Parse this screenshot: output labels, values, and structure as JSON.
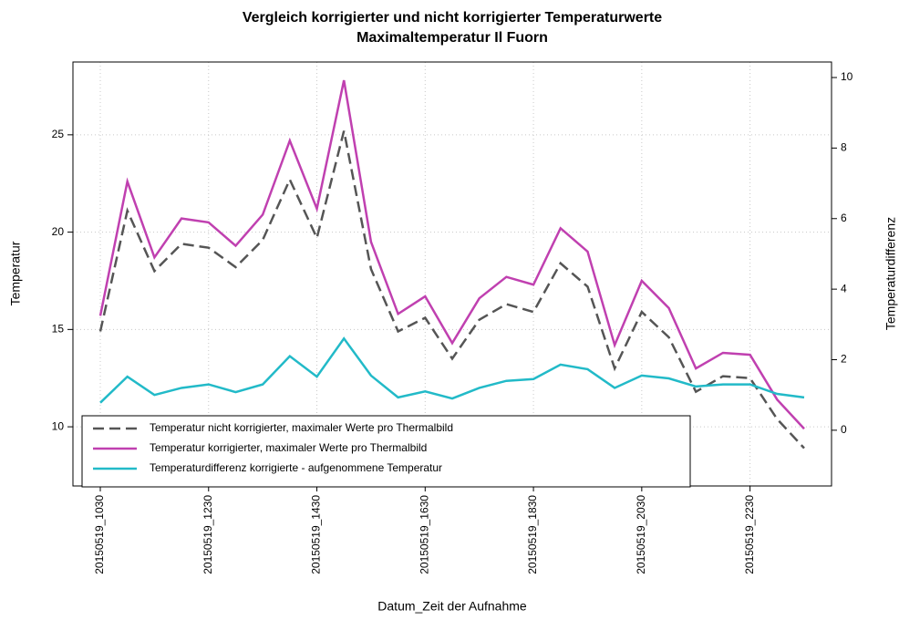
{
  "chart_data": {
    "type": "line",
    "title": "Vergleich korrigierter und nicht korrigierter Temperaturwerte",
    "subtitle": "Maximaltemperatur Il Fuorn",
    "x_label": "Datum_Zeit der Aufnahme",
    "y_label": "Temperatur",
    "y2_label": "Temperaturdifferenz",
    "categories": [
      "20150519_1030",
      null,
      null,
      null,
      "20150519_1230",
      null,
      null,
      null,
      "20150519_1430",
      null,
      null,
      null,
      "20150519_1630",
      null,
      null,
      null,
      "20150519_1830",
      null,
      null,
      null,
      "20150519_2030",
      null,
      null,
      null,
      "20150519_2230",
      null,
      null
    ],
    "series": [
      {
        "name": "Temperatur nicht korrigierter, maximaler Werte pro Thermalbild",
        "color": "#555555",
        "dashed": true,
        "values": [
          14.9,
          21.1,
          18.0,
          19.4,
          19.2,
          18.2,
          19.6,
          22.7,
          19.7,
          25.2,
          18.1,
          14.9,
          15.6,
          13.5,
          15.5,
          16.3,
          15.9,
          18.4,
          17.2,
          13.0,
          15.9,
          14.6,
          11.8,
          12.6,
          12.5,
          10.4,
          8.9
        ]
      },
      {
        "name": "Temperatur korrigierter, maximaler Werte pro Thermalbild",
        "color": "#c040b0",
        "values": [
          15.7,
          22.6,
          18.7,
          20.7,
          20.5,
          19.3,
          20.9,
          24.7,
          21.2,
          27.8,
          19.5,
          15.8,
          16.7,
          14.3,
          16.6,
          17.7,
          17.3,
          20.2,
          19.0,
          14.2,
          17.5,
          16.1,
          13.0,
          13.8,
          13.7,
          11.4,
          9.9
        ]
      },
      {
        "name": "Temperaturdifferenz korrigierte - aufgenommene Temperatur",
        "color": "#22bac8",
        "axis": "y2",
        "values": [
          0.78,
          1.52,
          1.0,
          1.2,
          1.3,
          1.08,
          1.3,
          2.1,
          1.52,
          2.6,
          1.55,
          0.93,
          1.1,
          0.9,
          1.2,
          1.4,
          1.45,
          1.86,
          1.73,
          1.2,
          1.55,
          1.47,
          1.24,
          1.3,
          1.3,
          1.03,
          0.93
        ]
      }
    ],
    "ylim": [
      6.96,
      28.74
    ],
    "yticks": [
      10,
      15,
      20,
      25
    ],
    "y2lim": [
      -1.58,
      10.44
    ],
    "y2ticks": [
      0,
      2,
      4,
      6,
      8,
      10
    ],
    "grid": true,
    "legend": "bottom-left"
  }
}
